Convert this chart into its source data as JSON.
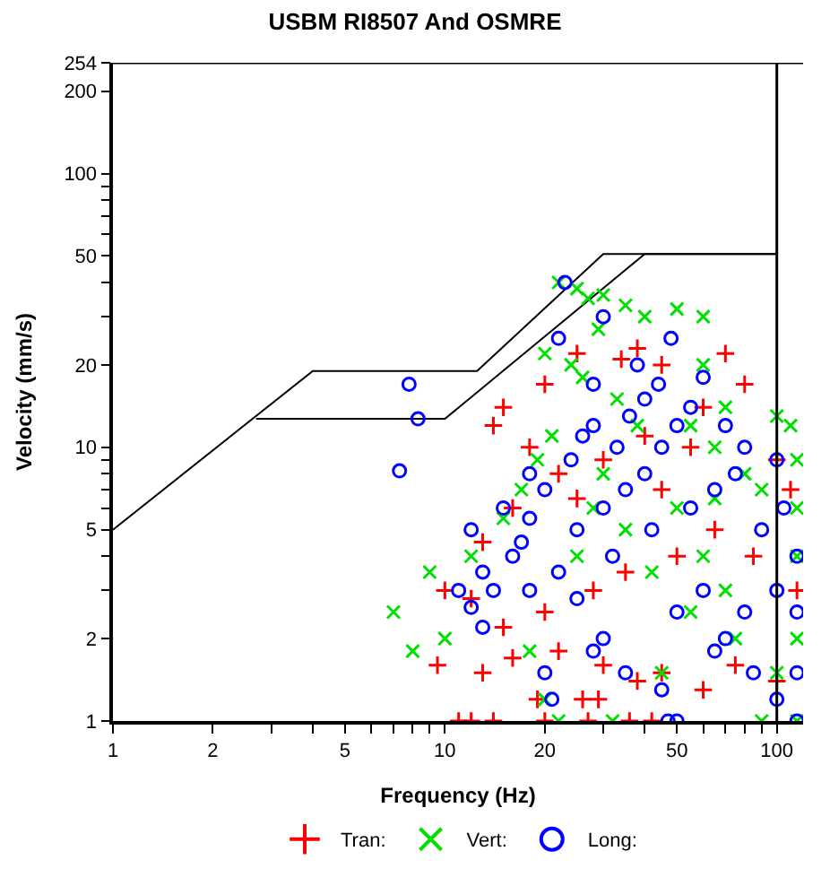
{
  "chart_data": {
    "type": "scatter",
    "title": "USBM RI8507 And OSMRE",
    "xlabel": "Frequency (Hz)",
    "ylabel": "Velocity (mm/s)",
    "log": "xy",
    "legend": "bottom",
    "xlim": [
      1,
      120
    ],
    "ylim": [
      1,
      254
    ],
    "xticks": [
      1,
      2,
      {
        "value": 3,
        "label": null
      },
      {
        "value": 4,
        "label": null
      },
      5,
      {
        "value": 6,
        "label": null
      },
      {
        "value": 7,
        "label": null
      },
      {
        "value": 8,
        "label": null
      },
      {
        "value": 9,
        "label": null
      },
      10,
      20,
      {
        "value": 30,
        "label": null
      },
      {
        "value": 40,
        "label": null
      },
      50,
      {
        "value": 60,
        "label": null
      },
      {
        "value": 70,
        "label": null
      },
      {
        "value": 80,
        "label": null
      },
      {
        "value": 90,
        "label": null
      },
      100
    ],
    "yticks": [
      1,
      2,
      {
        "value": 3,
        "label": null
      },
      {
        "value": 4,
        "label": null
      },
      5,
      {
        "value": 6,
        "label": null
      },
      {
        "value": 7,
        "label": null
      },
      {
        "value": 8,
        "label": null
      },
      {
        "value": 9,
        "label": null
      },
      10,
      20,
      {
        "value": 30,
        "label": null
      },
      {
        "value": 40,
        "label": null
      },
      50,
      {
        "value": 60,
        "label": null
      },
      {
        "value": 70,
        "label": null
      },
      {
        "value": 80,
        "label": null
      },
      {
        "value": 90,
        "label": null
      },
      100,
      200,
      254
    ],
    "ref_lines": [
      {
        "axis": "x",
        "value": 100,
        "label": null,
        "color": "#000000"
      }
    ],
    "series": [
      {
        "type": "line",
        "color": "#000000",
        "marker": "none",
        "line_style": "solid",
        "x": [
          1,
          4,
          12.5,
          30,
          100
        ],
        "values": [
          5,
          19,
          19,
          50.8,
          50.8
        ]
      },
      {
        "type": "line",
        "color": "#000000",
        "marker": "none",
        "line_style": "solid",
        "x": [
          2.7,
          10,
          40,
          100
        ],
        "values": [
          12.7,
          12.7,
          50.8,
          50.8
        ]
      },
      {
        "name": "Tran:",
        "color": "#ff0000",
        "marker": "cross",
        "x": [
          11,
          12,
          14,
          20,
          27,
          36,
          42,
          19,
          26,
          29,
          9.5,
          13,
          16,
          22,
          30,
          38,
          45,
          60,
          75,
          100,
          115,
          110,
          100,
          80,
          70,
          45,
          38,
          34,
          25,
          20,
          15,
          14,
          18,
          22,
          30,
          40,
          55,
          65,
          50,
          35,
          28,
          20,
          15,
          12,
          10,
          13,
          16,
          25,
          45,
          60,
          85
        ],
        "values": [
          1,
          1,
          1,
          1,
          1,
          1,
          1,
          1.2,
          1.2,
          1.2,
          1.6,
          1.5,
          1.7,
          1.8,
          1.6,
          1.4,
          1.5,
          1.3,
          1.6,
          1.4,
          3,
          7,
          9,
          17,
          22,
          20,
          23,
          21,
          22,
          17,
          14,
          12,
          10,
          8,
          9,
          11,
          10,
          5,
          4,
          3.5,
          3,
          2.5,
          2.2,
          2.8,
          3,
          4.5,
          6,
          6.5,
          7,
          14,
          4
        ]
      },
      {
        "name": "Vert:",
        "color": "#00e000",
        "marker": "x",
        "x": [
          22,
          25,
          27,
          30,
          35,
          29,
          40,
          50,
          60,
          20,
          24,
          26,
          33,
          38,
          55,
          65,
          100,
          110,
          115,
          115,
          115,
          115,
          115,
          90,
          100,
          75,
          70,
          60,
          55,
          45,
          32,
          22,
          20,
          18,
          10,
          8,
          7,
          9,
          12,
          15,
          17,
          19,
          21,
          28,
          35,
          42,
          50,
          65,
          80,
          90,
          70,
          60,
          30,
          25
        ],
        "values": [
          40,
          38,
          35,
          36,
          33,
          27,
          30,
          32,
          30,
          22,
          20,
          18,
          15,
          12,
          12,
          10,
          13,
          12,
          9,
          6,
          4,
          2,
          1,
          1,
          1.5,
          2,
          3,
          4,
          2.5,
          1.5,
          1,
          1,
          1.2,
          1.8,
          2,
          1.8,
          2.5,
          3.5,
          4,
          5.5,
          7,
          9,
          11,
          6,
          5,
          3.5,
          6,
          6.5,
          8,
          7,
          14,
          20,
          8,
          4
        ]
      },
      {
        "name": "Long:",
        "color": "#0000ff",
        "marker": "circle",
        "x": [
          7.8,
          8.3,
          7.3,
          23,
          22,
          28,
          28,
          33,
          18,
          20,
          15,
          12,
          13,
          14,
          16,
          17,
          11,
          12,
          13,
          18,
          22,
          25,
          30,
          35,
          40,
          45,
          50,
          38,
          40,
          55,
          60,
          70,
          80,
          100,
          115,
          115,
          115,
          115,
          100,
          85,
          70,
          60,
          50,
          45,
          47,
          50,
          35,
          30,
          28,
          20,
          21,
          25,
          32,
          42,
          55,
          65,
          75,
          90,
          105,
          100,
          80,
          65,
          18,
          24,
          26,
          36,
          44,
          48,
          30
        ],
        "values": [
          17,
          12.7,
          8.2,
          40,
          25,
          17,
          12,
          10,
          8,
          7,
          6,
          5,
          3.5,
          3,
          4,
          4.5,
          3,
          2.6,
          2.2,
          3,
          3.5,
          5,
          6,
          7,
          8,
          10,
          12,
          20,
          15,
          14,
          18,
          12,
          10,
          9,
          4,
          2.5,
          1.5,
          1,
          1.2,
          1.5,
          2,
          3,
          2.5,
          1.3,
          1,
          1,
          1.5,
          2,
          1.8,
          1.5,
          1.2,
          2.8,
          4,
          5,
          6,
          7,
          8,
          5,
          6,
          3,
          2.5,
          1.8,
          5.5,
          9,
          11,
          13,
          17,
          25,
          30
        ]
      }
    ]
  }
}
